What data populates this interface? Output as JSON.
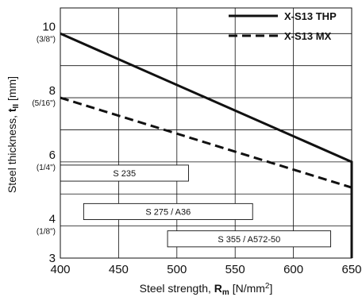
{
  "chart_data": {
    "type": "line",
    "title": "",
    "xlabel": {
      "prefix": "Steel strength, ",
      "symbol": "R",
      "sub": "m",
      "unit": " [N/mm",
      "unit_sup": "2",
      "unit_end": "]"
    },
    "ylabel": {
      "prefix": "Steel thickness, ",
      "symbol": "t",
      "sub": "II",
      "unit": " [mm]"
    },
    "xlim": [
      400,
      650
    ],
    "ylim": [
      3,
      10.8
    ],
    "x_ticks": [
      400,
      450,
      500,
      550,
      600,
      650
    ],
    "y_ticks": [
      {
        "value": 3,
        "label": "3",
        "sub": ""
      },
      {
        "value": 4,
        "label": "4",
        "sub": "(1/8\")"
      },
      {
        "value": 6,
        "label": "6",
        "sub": "(1/4\")"
      },
      {
        "value": 8,
        "label": "8",
        "sub": "(5/16\")"
      },
      {
        "value": 10,
        "label": "10",
        "sub": "(3/8\")"
      }
    ],
    "grid": true,
    "grid_y": [
      3,
      4,
      5,
      6,
      7,
      8,
      9,
      10
    ],
    "grid_x": [
      450,
      500,
      550,
      600
    ],
    "legend_position": "top-right",
    "series": [
      {
        "name": "X-S13 THP",
        "style": "solid",
        "x": [
          400,
          650,
          650
        ],
        "y": [
          10,
          6,
          3
        ]
      },
      {
        "name": "X-S13 MX",
        "style": "dashed",
        "x": [
          400,
          650
        ],
        "y": [
          8,
          5.2
        ]
      }
    ],
    "annotations": [
      {
        "label": "S 235",
        "x_range": [
          400,
          510
        ],
        "y_range": [
          5.4,
          5.9
        ]
      },
      {
        "label": "S 275 / A36",
        "x_range": [
          420,
          565
        ],
        "y_range": [
          4.2,
          4.7
        ]
      },
      {
        "label": "S 355 / A572-50",
        "x_range": [
          492,
          632
        ],
        "y_range": [
          3.35,
          3.85
        ]
      }
    ]
  }
}
